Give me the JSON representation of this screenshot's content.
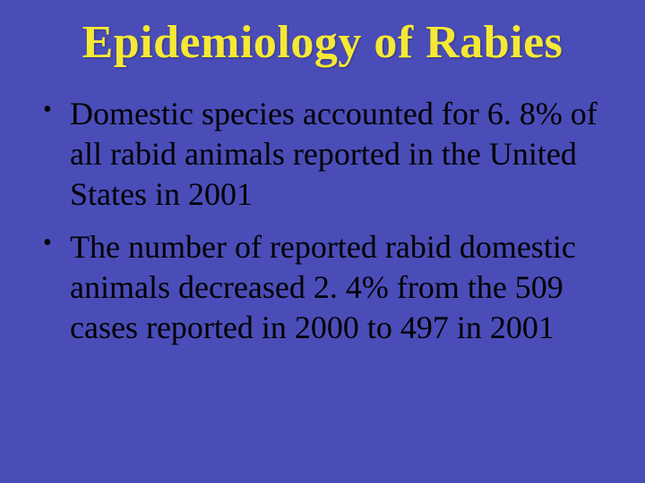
{
  "slide": {
    "title": "Epidemiology of Rabies",
    "title_color": "#f5e935",
    "title_fontsize": 52,
    "background_color": "#4a4db8",
    "body_color": "#000000",
    "body_fontsize": 36,
    "bullets": [
      "Domestic species accounted for 6. 8% of all rabid animals reported in the United States in 2001",
      "The number of reported rabid domestic animals decreased 2. 4% from the 509 cases reported in 2000 to 497 in 2001"
    ]
  }
}
